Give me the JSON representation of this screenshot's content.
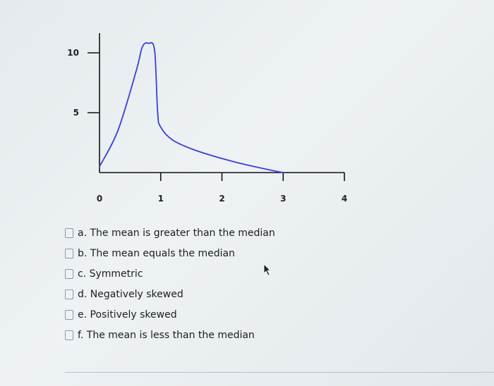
{
  "chart_data": {
    "type": "line",
    "x_ticks": [
      "0",
      "1",
      "2",
      "3",
      "4"
    ],
    "y_ticks": [
      "5",
      "10"
    ],
    "xlim": [
      0,
      4
    ],
    "ylim": [
      0,
      10
    ],
    "series": [
      {
        "color": "#3a3fd6",
        "x": [
          0,
          0.3,
          0.6,
          0.7,
          0.8,
          0.9,
          0.95,
          1.0,
          1.2,
          1.6,
          2.2,
          2.8,
          3.0
        ],
        "y": [
          0.5,
          3.5,
          8.5,
          10.5,
          10.8,
          10.2,
          5,
          3.8,
          2.7,
          1.8,
          0.9,
          0.2,
          0
        ]
      }
    ]
  },
  "options": [
    {
      "label": "a. The mean is greater than the median"
    },
    {
      "label": "b. The mean equals the median"
    },
    {
      "label": "c. Symmetric"
    },
    {
      "label": "d. Negatively skewed"
    },
    {
      "label": "e. Positively skewed"
    },
    {
      "label": "f. The mean is less than the median"
    }
  ],
  "icons": {
    "cursor": "mouse-pointer-icon"
  }
}
